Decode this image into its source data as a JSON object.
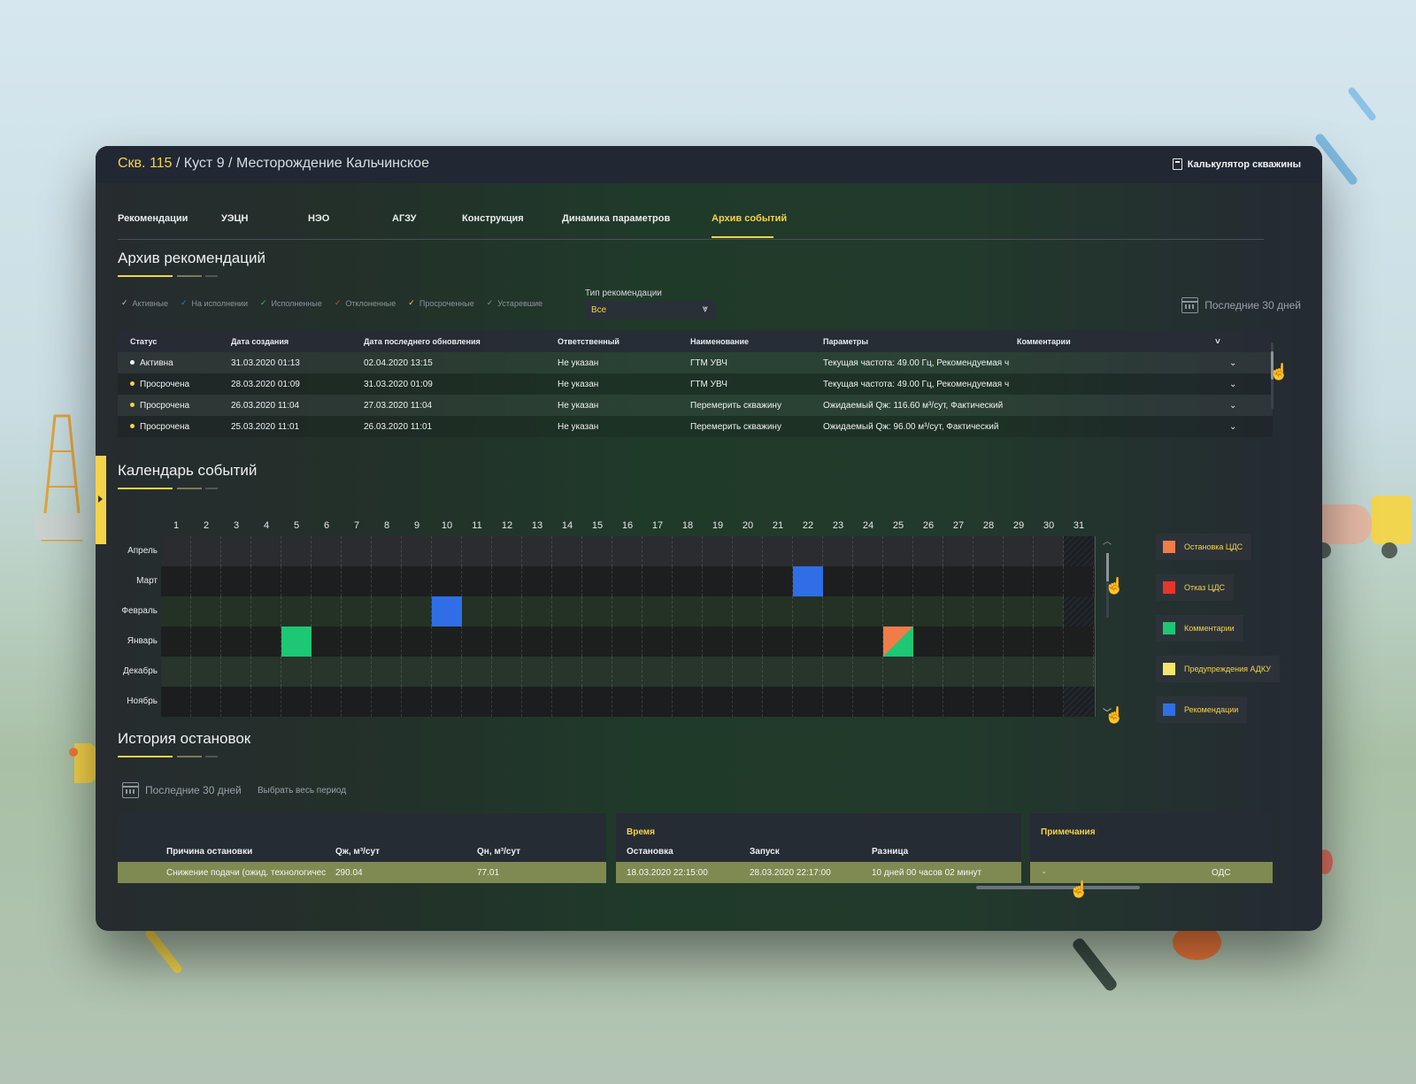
{
  "header": {
    "well": "Скв. 115",
    "path": " / Куст 9 / Месторождение Кальчинское",
    "calculator": "Калькулятор скважины"
  },
  "tabs": [
    "Рекомендации",
    "УЭЦН",
    "НЭО",
    "АГЗУ",
    "Конструкция",
    "Динамика параметров",
    "Архив событий"
  ],
  "active_tab": "Архив событий",
  "archive": {
    "title": "Архив рекомендаций",
    "filters": [
      {
        "label": "Активные",
        "color": "#c6c9cc"
      },
      {
        "label": "На исполнении",
        "color": "#3a7bd5"
      },
      {
        "label": "Исполненные",
        "color": "#2bbf6a"
      },
      {
        "label": "Отклоненные",
        "color": "#d94b3a"
      },
      {
        "label": "Просроченные",
        "color": "#f5d34a"
      },
      {
        "label": "Устаревшие",
        "color": "#8a9197"
      }
    ],
    "type_label": "Тип рекомендации",
    "type_value": "Все",
    "period": "Последние 30 дней",
    "columns": {
      "status": "Статус",
      "created": "Дата создания",
      "updated": "Дата последнего обновления",
      "responsible": "Ответственный",
      "name": "Наименование",
      "params": "Параметры",
      "comments": "Комментарии"
    },
    "rows": [
      {
        "status": "Активна",
        "dot": "#ffffff",
        "created": "31.03.2020 01:13",
        "updated": "02.04.2020 13:15",
        "responsible": "Не указан",
        "name": "ГТМ УВЧ",
        "params": "Текущая частота: 49.00 Гц, Рекомендуемая ч"
      },
      {
        "status": "Просрочена",
        "dot": "#f5d34a",
        "created": "28.03.2020 01:09",
        "updated": "31.03.2020 01:09",
        "responsible": "Не указан",
        "name": "ГТМ УВЧ",
        "params": "Текущая частота: 49.00 Гц, Рекомендуемая ч"
      },
      {
        "status": "Просрочена",
        "dot": "#f5d34a",
        "created": "26.03.2020 11:04",
        "updated": "27.03.2020 11:04",
        "responsible": "Не указан",
        "name": "Перемерить скважину",
        "params": "Ожидаемый Qж: 116.60 м³/сут, Фактический"
      },
      {
        "status": "Просрочена",
        "dot": "#f5d34a",
        "created": "25.03.2020 11:01",
        "updated": "26.03.2020 11:01",
        "responsible": "Не указан",
        "name": "Перемерить скважину",
        "params": "Ожидаемый Qж: 96.00 м³/сут, Фактический"
      }
    ]
  },
  "calendar": {
    "title": "Календарь событий",
    "days": [
      "1",
      "2",
      "3",
      "4",
      "5",
      "6",
      "7",
      "8",
      "9",
      "10",
      "11",
      "12",
      "13",
      "14",
      "15",
      "16",
      "17",
      "18",
      "19",
      "20",
      "21",
      "22",
      "23",
      "24",
      "25",
      "26",
      "27",
      "28",
      "29",
      "30",
      "31"
    ],
    "months": [
      "Апрель",
      "Март",
      "Февраль",
      "Январь",
      "Декабрь",
      "Ноябрь"
    ],
    "events": [
      {
        "month": "Март",
        "day": 22,
        "types": [
          "Рекомендации"
        ]
      },
      {
        "month": "Февраль",
        "day": 10,
        "types": [
          "Рекомендации"
        ]
      },
      {
        "month": "Январь",
        "day": 5,
        "types": [
          "Комментарии"
        ]
      },
      {
        "month": "Январь",
        "day": 25,
        "types": [
          "Остановка ЦДС",
          "Комментарии"
        ]
      }
    ],
    "legend": [
      {
        "label": "Остановка ЦДС",
        "color": "#f07c48"
      },
      {
        "label": "Отказ ЦДС",
        "color": "#e8352a"
      },
      {
        "label": "Комментарии",
        "color": "#1ec773"
      },
      {
        "label": "Предупреждения АДКУ",
        "color": "#f5e66a"
      },
      {
        "label": "Рекомендации",
        "color": "#2f6ee6"
      }
    ]
  },
  "history": {
    "title": "История остановок",
    "period": "Последние 30 дней",
    "select_all": "Выбрать весь период",
    "cols_left": {
      "reason": "Причина остановки",
      "ql": "Qж, м³/сут",
      "qo": "Qн, м³/сут"
    },
    "time_title": "Время",
    "cols_time": {
      "stop": "Остановка",
      "start": "Запуск",
      "diff": "Разница"
    },
    "notes_title": "Примечания",
    "row": {
      "reason": "Снижение подачи (ожид. технологичес",
      "ql": "290.04",
      "qo": "77.01",
      "stop": "18.03.2020 22:15:00",
      "start": "28.03.2020 22:17:00",
      "diff": "10 дней 00 часов 02 минут",
      "note": "-",
      "note2": "ОДС"
    }
  }
}
